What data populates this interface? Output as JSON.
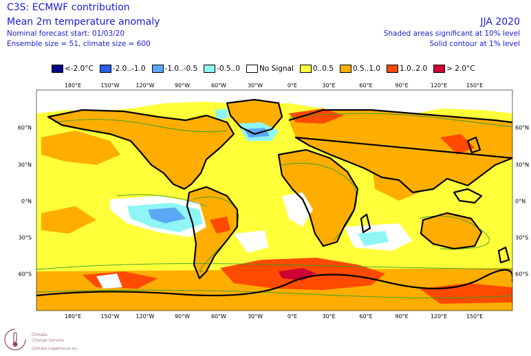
{
  "header": {
    "title": "C3S: ECMWF contribution",
    "subtitle": "Mean 2m temperature anomaly",
    "forecast_start": "Nominal forecast start: 01/03/20",
    "ensemble": "Ensemble size = 51, climate size = 600",
    "season": "JJA 2020",
    "significance_shaded": "Shaded areas significant at 10% level",
    "significance_contour": "Solid contour at 1% level"
  },
  "legend": {
    "items": [
      {
        "label": "<-2.0°C",
        "color": "#00008b"
      },
      {
        "label": "-2.0..-1.0",
        "color": "#2a5ef0"
      },
      {
        "label": "-1.0..-0.5",
        "color": "#5aa8f5"
      },
      {
        "label": "-0.5..0",
        "color": "#8ff5f5"
      },
      {
        "label": "No Signal",
        "color": "#ffffff"
      },
      {
        "label": "0..0.5",
        "color": "#ffff3a"
      },
      {
        "label": "0.5..1.0",
        "color": "#ffae00"
      },
      {
        "label": "1.0..2.0",
        "color": "#ff4a00"
      },
      {
        "label": "> 2.0°C",
        "color": "#cc0033"
      }
    ]
  },
  "axes": {
    "longitude_ticks": [
      "180°E",
      "150°W",
      "120°W",
      "90°W",
      "60°W",
      "30°W",
      "0°E",
      "30°E",
      "60°E",
      "90°E",
      "120°E",
      "150°E"
    ],
    "latitude_ticks": [
      "60°N",
      "30°N",
      "0°N",
      "30°S",
      "60°S"
    ]
  },
  "logo": {
    "line1": "Climate",
    "line2": "Change Service",
    "line3": "climate.copernicus.eu"
  },
  "colors": {
    "ocean_base": "#ffff3a",
    "land_base": "#ffae00",
    "strong_warm": "#ff4a00",
    "extreme_warm": "#cc0033",
    "cool": "#8ff5f5",
    "cool2": "#5aa8f5",
    "contour": "#2e9e2e",
    "coast": "#000000"
  }
}
